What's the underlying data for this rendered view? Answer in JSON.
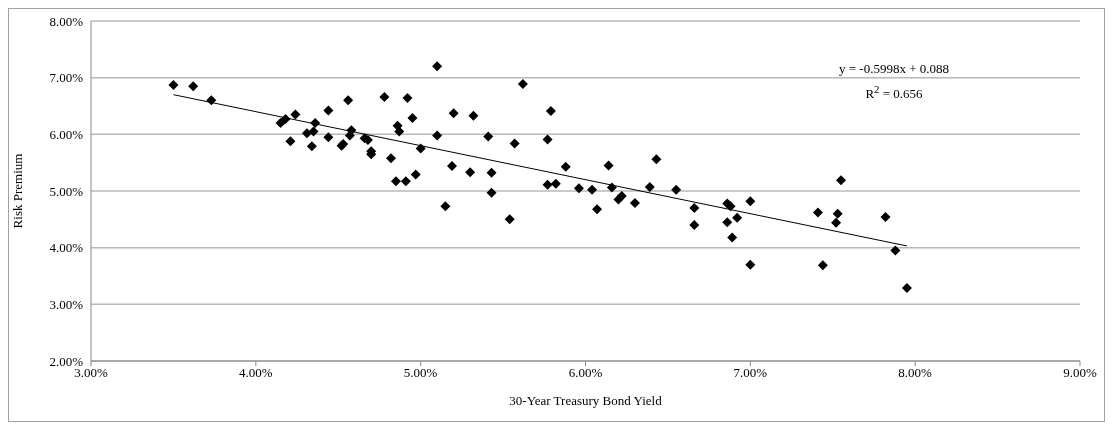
{
  "chart_data": {
    "type": "scatter",
    "xlabel": "30-Year Treasury Bond Yield",
    "ylabel": "Risk Premium",
    "xlim": [
      3,
      9
    ],
    "ylim": [
      2,
      8
    ],
    "xticks": [
      {
        "value": 3,
        "label": "3.00%"
      },
      {
        "value": 4,
        "label": "4.00%"
      },
      {
        "value": 5,
        "label": "5.00%"
      },
      {
        "value": 6,
        "label": "6.00%"
      },
      {
        "value": 7,
        "label": "7.00%"
      },
      {
        "value": 8,
        "label": "8.00%"
      },
      {
        "value": 9,
        "label": "9.00%"
      }
    ],
    "yticks": [
      {
        "value": 2,
        "label": "2.00%"
      },
      {
        "value": 3,
        "label": "3.00%"
      },
      {
        "value": 4,
        "label": "4.00%"
      },
      {
        "value": 5,
        "label": "5.00%"
      },
      {
        "value": 6,
        "label": "6.00%"
      },
      {
        "value": 7,
        "label": "7.00%"
      },
      {
        "value": 8,
        "label": "8.00%"
      }
    ],
    "grid": "y",
    "annotations": [
      "y = -0.5998x + 0.088",
      "R$^{2}$ = 0.656"
    ],
    "series": [
      {
        "marker": "diamond",
        "color": "#000000",
        "x": [
          3.5,
          3.62,
          3.73,
          4.15,
          4.18,
          4.21,
          4.24,
          4.31,
          4.34,
          4.35,
          4.36,
          4.44,
          4.44,
          4.52,
          4.53,
          4.56,
          4.57,
          4.58,
          4.66,
          4.68,
          4.7,
          4.7,
          4.78,
          4.82,
          4.85,
          4.86,
          4.87,
          4.91,
          4.92,
          4.95,
          4.97,
          5.0,
          5.1,
          5.1,
          5.15,
          5.19,
          5.2,
          5.3,
          5.32,
          5.41,
          5.43,
          5.43,
          5.54,
          5.57,
          5.62,
          5.77,
          5.77,
          5.79,
          5.82,
          5.88,
          5.96,
          6.04,
          6.07,
          6.14,
          6.16,
          6.2,
          6.22,
          6.3,
          6.39,
          6.43,
          6.55,
          6.66,
          6.66,
          6.86,
          6.86,
          6.88,
          6.89,
          6.92,
          7.0,
          7.0,
          7.41,
          7.44,
          7.52,
          7.53,
          7.55,
          7.82,
          7.88,
          7.95
        ],
        "values": [
          6.87,
          6.85,
          6.6,
          6.2,
          6.27,
          5.88,
          6.35,
          6.02,
          5.79,
          6.05,
          6.2,
          6.42,
          5.95,
          5.8,
          5.83,
          6.6,
          5.98,
          6.07,
          5.93,
          5.9,
          5.65,
          5.7,
          6.66,
          5.58,
          5.17,
          6.15,
          6.05,
          5.17,
          6.64,
          6.29,
          5.29,
          5.75,
          7.2,
          5.98,
          4.73,
          5.44,
          6.37,
          5.33,
          6.33,
          5.96,
          5.32,
          4.97,
          4.5,
          5.84,
          6.89,
          5.91,
          5.11,
          6.41,
          5.13,
          5.43,
          5.05,
          5.02,
          4.68,
          5.45,
          5.06,
          4.85,
          4.91,
          4.79,
          5.07,
          5.56,
          5.02,
          4.7,
          4.4,
          4.78,
          4.45,
          4.73,
          4.18,
          4.53,
          4.82,
          3.7,
          4.62,
          3.69,
          4.44,
          4.6,
          5.19,
          4.54,
          3.95,
          3.29
        ]
      },
      {
        "type": "line",
        "color": "#000000",
        "x": [
          3.5,
          7.95
        ],
        "values": [
          6.7,
          4.03
        ]
      }
    ]
  }
}
